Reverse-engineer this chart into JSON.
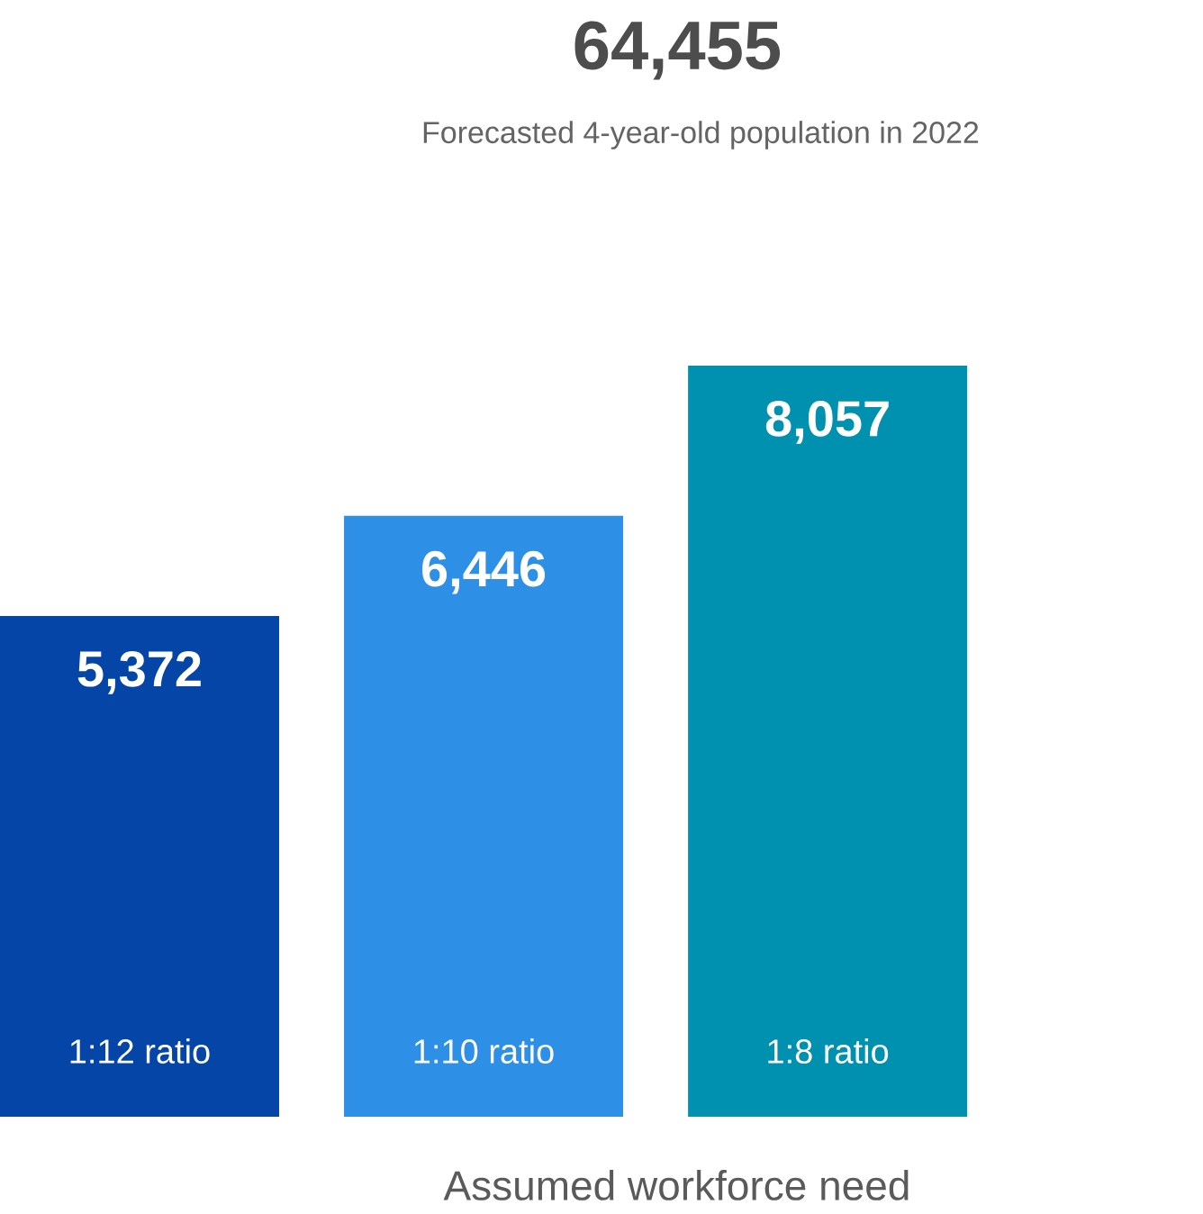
{
  "chart_data": {
    "type": "bar",
    "title": "64,455",
    "subtitle": "Forecasted 4-year-old population in 2022",
    "xlabel": "Assumed workforce need",
    "categories": [
      "1:12 ratio",
      "1:10 ratio",
      "1:8 ratio"
    ],
    "values": [
      5372,
      6446,
      8057
    ],
    "value_labels": [
      "5,372",
      "6,446",
      "8,057"
    ],
    "colors": [
      "#0645a8",
      "#2e8fe6",
      "#0090b0"
    ]
  }
}
